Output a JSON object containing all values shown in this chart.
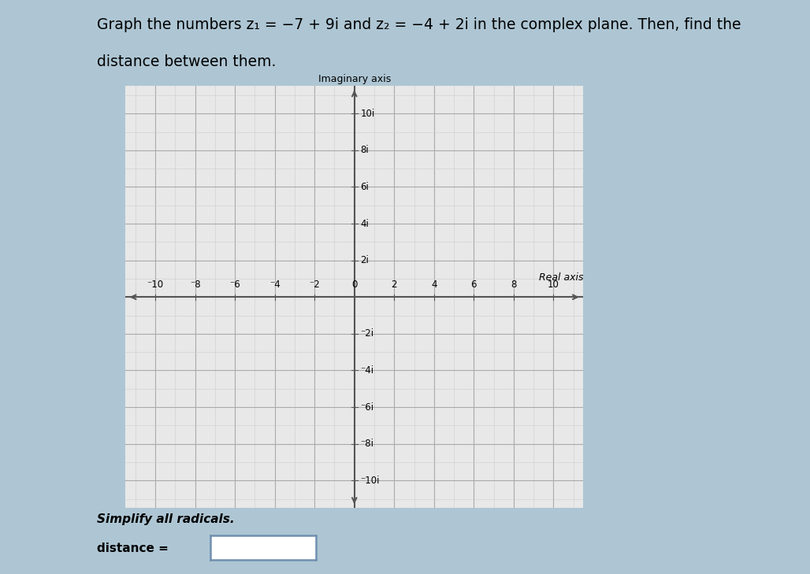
{
  "title_line1": "Graph the numbers z₁ = −7 + 9i and z₂ = −4 + 2i in the complex plane. Then, find the",
  "title_line2": "distance between them.",
  "xlabel": "Real axis",
  "ylabel": "Imaginary axis",
  "xlim": [
    -11.5,
    11.5
  ],
  "ylim": [
    -11.5,
    11.5
  ],
  "x_ticks": [
    -10,
    -8,
    -6,
    -4,
    -2,
    0,
    2,
    4,
    6,
    8,
    10
  ],
  "y_ticks": [
    -10,
    -8,
    -6,
    -4,
    -2,
    2,
    4,
    6,
    8,
    10
  ],
  "axis_color": "#555555",
  "grid_minor_color": "#cccccc",
  "grid_major_color": "#aaaaaa",
  "plot_bg_color": "#e8e8e8",
  "outer_bg_color": "#aec6d4",
  "white_bg_color": "#f0f0f0",
  "simplify_text": "Simplify all radicals.",
  "distance_label": "distance =",
  "box_color": "#7090b0",
  "title_fontsize": 13.5,
  "axis_label_fontsize": 9,
  "tick_fontsize": 8.5
}
